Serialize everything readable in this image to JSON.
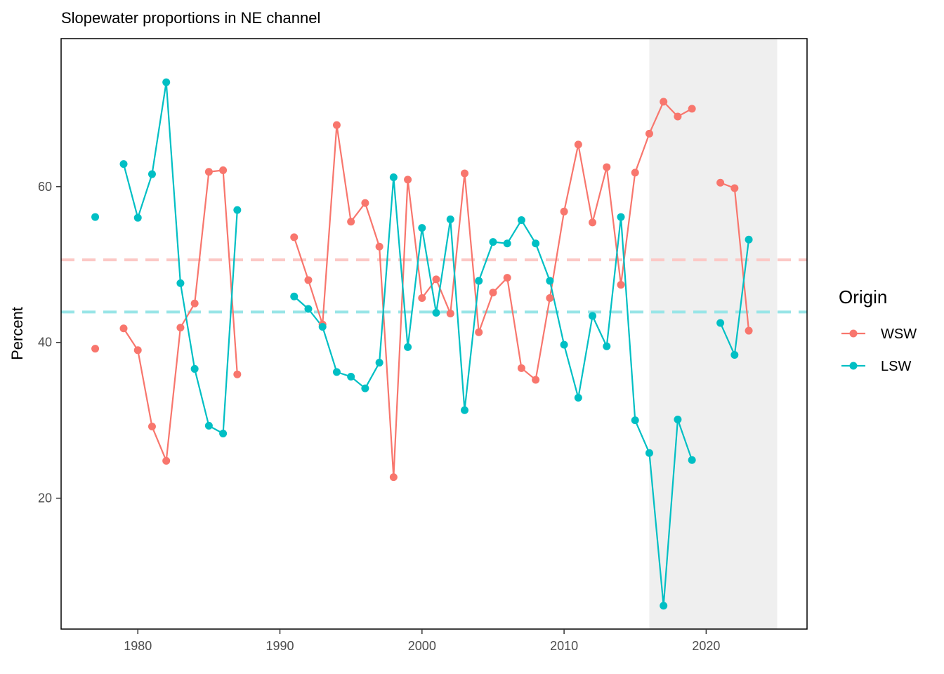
{
  "chart_data": {
    "type": "line",
    "title": "Slopewater proportions in NE channel",
    "xlabel": "",
    "ylabel": "Percent",
    "xlim": [
      1974.6,
      2027.1
    ],
    "ylim": [
      3.2,
      79.0
    ],
    "xticks": [
      1980,
      1990,
      2000,
      2010,
      2020
    ],
    "yticks": [
      20,
      40,
      60
    ],
    "grid": false,
    "legend": {
      "title": "Origin",
      "position": "right"
    },
    "shaded_region": {
      "x": [
        2016,
        2025
      ],
      "color": "#efefef"
    },
    "series": [
      {
        "name": "WSW",
        "color": "#F8766D",
        "mean": 50.6,
        "points": [
          [
            1977,
            39.2
          ],
          [
            1979,
            41.8
          ],
          [
            1980,
            39.0
          ],
          [
            1981,
            29.2
          ],
          [
            1982,
            24.8
          ],
          [
            1983,
            41.9
          ],
          [
            1984,
            45.0
          ],
          [
            1985,
            61.9
          ],
          [
            1986,
            62.1
          ],
          [
            1987,
            35.9
          ],
          [
            1991,
            53.5
          ],
          [
            1992,
            48.0
          ],
          [
            1993,
            42.3
          ],
          [
            1994,
            67.9
          ],
          [
            1995,
            55.5
          ],
          [
            1996,
            57.9
          ],
          [
            1997,
            52.3
          ],
          [
            1998,
            22.7
          ],
          [
            1999,
            60.9
          ],
          [
            2000,
            45.7
          ],
          [
            2001,
            48.1
          ],
          [
            2002,
            43.7
          ],
          [
            2003,
            61.7
          ],
          [
            2004,
            41.3
          ],
          [
            2005,
            46.4
          ],
          [
            2006,
            48.3
          ],
          [
            2007,
            36.7
          ],
          [
            2008,
            35.2
          ],
          [
            2009,
            45.7
          ],
          [
            2010,
            56.8
          ],
          [
            2011,
            65.4
          ],
          [
            2012,
            55.4
          ],
          [
            2013,
            62.5
          ],
          [
            2014,
            47.4
          ],
          [
            2015,
            61.8
          ],
          [
            2016,
            66.8
          ],
          [
            2017,
            70.9
          ],
          [
            2018,
            69.0
          ],
          [
            2019,
            70.0
          ],
          [
            2021,
            60.5
          ],
          [
            2022,
            59.8
          ],
          [
            2023,
            41.5
          ]
        ]
      },
      {
        "name": "LSW",
        "color": "#00BFC4",
        "mean": 43.9,
        "points": [
          [
            1977,
            56.1
          ],
          [
            1979,
            62.9
          ],
          [
            1980,
            56.0
          ],
          [
            1981,
            61.6
          ],
          [
            1982,
            73.4
          ],
          [
            1983,
            47.6
          ],
          [
            1984,
            36.6
          ],
          [
            1985,
            29.3
          ],
          [
            1986,
            28.3
          ],
          [
            1987,
            57.0
          ],
          [
            1991,
            45.9
          ],
          [
            1992,
            44.3
          ],
          [
            1993,
            42.0
          ],
          [
            1994,
            36.2
          ],
          [
            1995,
            35.6
          ],
          [
            1996,
            34.1
          ],
          [
            1997,
            37.4
          ],
          [
            1998,
            61.2
          ],
          [
            1999,
            39.4
          ],
          [
            2000,
            54.7
          ],
          [
            2001,
            43.8
          ],
          [
            2002,
            55.8
          ],
          [
            2003,
            31.3
          ],
          [
            2004,
            47.9
          ],
          [
            2005,
            52.9
          ],
          [
            2006,
            52.7
          ],
          [
            2007,
            55.7
          ],
          [
            2008,
            52.7
          ],
          [
            2009,
            47.9
          ],
          [
            2010,
            39.7
          ],
          [
            2011,
            32.9
          ],
          [
            2012,
            43.4
          ],
          [
            2013,
            39.5
          ],
          [
            2014,
            56.1
          ],
          [
            2015,
            30.0
          ],
          [
            2016,
            25.8
          ],
          [
            2017,
            6.2
          ],
          [
            2018,
            30.1
          ],
          [
            2019,
            24.9
          ],
          [
            2021,
            42.5
          ],
          [
            2022,
            38.4
          ],
          [
            2023,
            53.2
          ]
        ]
      }
    ]
  }
}
